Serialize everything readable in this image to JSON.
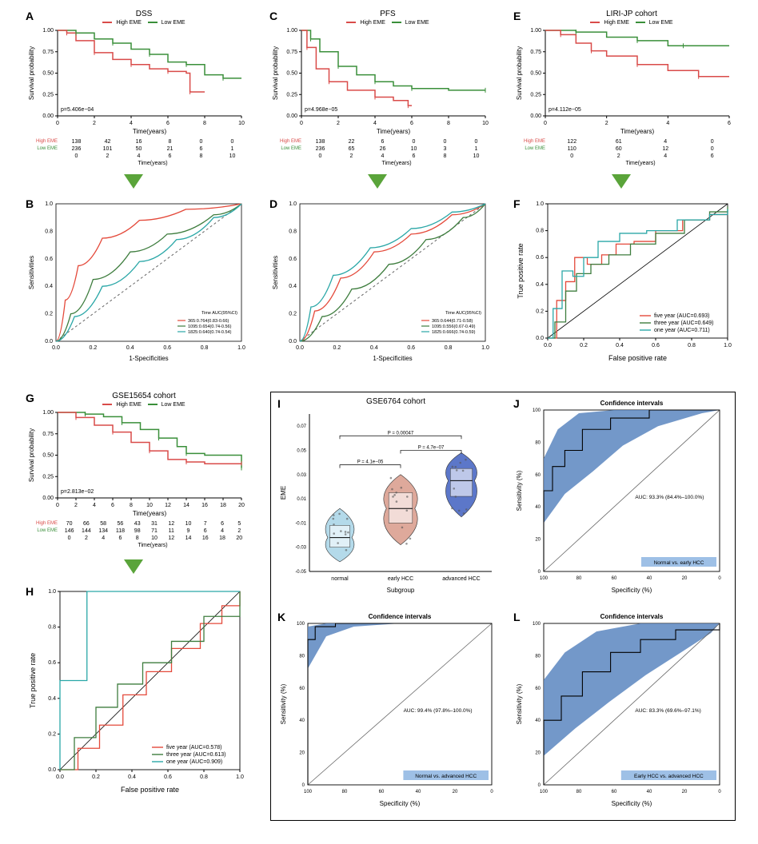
{
  "colors": {
    "high": "#d94b49",
    "low": "#3a8f3a",
    "roc_five": "#e4493a",
    "roc_three": "#3e7d3e",
    "roc_one": "#2aa7a7",
    "roc_diag": "#666666",
    "ci_fill": "#5b86bf",
    "violin_normal_fill": "#a7d3e6",
    "violin_early_fill": "#d89a89",
    "violin_adv_fill": "#3f5fbf",
    "grid": "#e0e0e0",
    "text": "#000000",
    "bg": "#ffffff"
  },
  "panelA": {
    "label": "A",
    "title": "DSS",
    "legend_high": "High EME",
    "legend_low": "Low EME",
    "xlabel": "Time(years)",
    "ylabel": "Survival probability",
    "xlim": [
      0,
      10
    ],
    "xtick_step": 2,
    "ylim": [
      0,
      1
    ],
    "ytick_step": 0.25,
    "pvalue_text": "p=5.406e−04",
    "high_curve": [
      [
        0,
        1.0
      ],
      [
        0.5,
        0.97
      ],
      [
        1,
        0.88
      ],
      [
        2,
        0.74
      ],
      [
        3,
        0.66
      ],
      [
        4,
        0.6
      ],
      [
        5,
        0.55
      ],
      [
        6,
        0.52
      ],
      [
        7,
        0.5
      ],
      [
        7.2,
        0.28
      ],
      [
        8,
        0.28
      ]
    ],
    "low_curve": [
      [
        0,
        1.0
      ],
      [
        1,
        0.97
      ],
      [
        2,
        0.9
      ],
      [
        3,
        0.85
      ],
      [
        4,
        0.78
      ],
      [
        5,
        0.72
      ],
      [
        6,
        0.63
      ],
      [
        7,
        0.6
      ],
      [
        8,
        0.48
      ],
      [
        9,
        0.44
      ],
      [
        10,
        0.44
      ]
    ],
    "risk_table": {
      "xlabel": "Time(years)",
      "rows": [
        {
          "label": "High EME",
          "color": "#d94b49",
          "values": [
            138,
            42,
            16,
            8,
            0,
            0
          ]
        },
        {
          "label": "Low EME",
          "color": "#3a8f3a",
          "values": [
            236,
            101,
            50,
            21,
            6,
            1
          ]
        }
      ],
      "ticks": [
        0,
        2,
        4,
        6,
        8,
        10
      ]
    }
  },
  "panelB": {
    "label": "B",
    "xlabel": "1-Specificities",
    "ylabel": "Sensitivities",
    "legend_title": "Time   AUC(95%CI)",
    "legend_rows": [
      {
        "color": "#e4493a",
        "text": "365:0.764(0.83-0.66)"
      },
      {
        "color": "#3e7d3e",
        "text": "1095:0.654(0.74-0.56)"
      },
      {
        "color": "#2aa7a7",
        "text": "1825:0.640(0.74-0.54)"
      }
    ],
    "curve1": [
      [
        0,
        0
      ],
      [
        0.05,
        0.3
      ],
      [
        0.12,
        0.55
      ],
      [
        0.25,
        0.75
      ],
      [
        0.45,
        0.88
      ],
      [
        0.7,
        0.96
      ],
      [
        1,
        1
      ]
    ],
    "curve2": [
      [
        0,
        0
      ],
      [
        0.08,
        0.2
      ],
      [
        0.2,
        0.45
      ],
      [
        0.4,
        0.65
      ],
      [
        0.6,
        0.78
      ],
      [
        0.85,
        0.92
      ],
      [
        1,
        1
      ]
    ],
    "curve3": [
      [
        0,
        0
      ],
      [
        0.1,
        0.18
      ],
      [
        0.25,
        0.4
      ],
      [
        0.45,
        0.58
      ],
      [
        0.65,
        0.74
      ],
      [
        0.85,
        0.9
      ],
      [
        1,
        1
      ]
    ]
  },
  "panelC": {
    "label": "C",
    "title": "PFS",
    "legend_high": "High EME",
    "legend_low": "Low EME",
    "xlabel": "Time(years)",
    "ylabel": "Survival probability",
    "xlim": [
      0,
      10
    ],
    "xtick_step": 2,
    "ylim": [
      0,
      1
    ],
    "ytick_step": 0.25,
    "pvalue_text": "p=4.968e−05",
    "high_curve": [
      [
        0,
        1.0
      ],
      [
        0.3,
        0.8
      ],
      [
        0.8,
        0.55
      ],
      [
        1.5,
        0.4
      ],
      [
        2.5,
        0.3
      ],
      [
        4,
        0.22
      ],
      [
        5,
        0.18
      ],
      [
        5.8,
        0.12
      ],
      [
        6,
        0.12
      ]
    ],
    "low_curve": [
      [
        0,
        1.0
      ],
      [
        0.5,
        0.9
      ],
      [
        1,
        0.75
      ],
      [
        2,
        0.58
      ],
      [
        3,
        0.48
      ],
      [
        4,
        0.4
      ],
      [
        5,
        0.35
      ],
      [
        6,
        0.32
      ],
      [
        8,
        0.3
      ],
      [
        10,
        0.3
      ]
    ],
    "risk_table": {
      "xlabel": "Time(years)",
      "rows": [
        {
          "label": "High EME",
          "color": "#d94b49",
          "values": [
            138,
            22,
            6,
            0,
            0,
            0
          ]
        },
        {
          "label": "Low EME",
          "color": "#3a8f3a",
          "values": [
            236,
            65,
            26,
            10,
            3,
            1
          ]
        }
      ],
      "ticks": [
        0,
        2,
        4,
        6,
        8,
        10
      ]
    }
  },
  "panelD": {
    "label": "D",
    "xlabel": "1-Specificities",
    "ylabel": "Sensitivities",
    "legend_title": "Time   AUC(95%CI)",
    "legend_rows": [
      {
        "color": "#e4493a",
        "text": "365:0.644(0.71-0.58)"
      },
      {
        "color": "#3e7d3e",
        "text": "1095:0.556(0.67-0.49)"
      },
      {
        "color": "#2aa7a7",
        "text": "1825:0.666(0.74-0.59)"
      }
    ],
    "curve1": [
      [
        0,
        0
      ],
      [
        0.08,
        0.22
      ],
      [
        0.22,
        0.46
      ],
      [
        0.4,
        0.65
      ],
      [
        0.6,
        0.78
      ],
      [
        0.82,
        0.92
      ],
      [
        1,
        1
      ]
    ],
    "curve2": [
      [
        0,
        0
      ],
      [
        0.12,
        0.18
      ],
      [
        0.28,
        0.38
      ],
      [
        0.48,
        0.56
      ],
      [
        0.68,
        0.74
      ],
      [
        0.88,
        0.9
      ],
      [
        1,
        1
      ]
    ],
    "curve3": [
      [
        0,
        0
      ],
      [
        0.06,
        0.25
      ],
      [
        0.18,
        0.48
      ],
      [
        0.38,
        0.68
      ],
      [
        0.6,
        0.82
      ],
      [
        0.82,
        0.94
      ],
      [
        1,
        1
      ]
    ]
  },
  "panelE": {
    "label": "E",
    "title": "LIRI-JP cohort",
    "legend_high": "High EME",
    "legend_low": "Low EME",
    "xlabel": "Time(years)",
    "ylabel": "Survival probability",
    "xlim": [
      0,
      6
    ],
    "xtick_step": 2,
    "ylim": [
      0,
      1
    ],
    "ytick_step": 0.25,
    "pvalue_text": "p=4.112e−05",
    "high_curve": [
      [
        0,
        1.0
      ],
      [
        0.5,
        0.95
      ],
      [
        1,
        0.85
      ],
      [
        1.5,
        0.76
      ],
      [
        2,
        0.7
      ],
      [
        3,
        0.6
      ],
      [
        4,
        0.53
      ],
      [
        5,
        0.46
      ],
      [
        6,
        0.46
      ]
    ],
    "low_curve": [
      [
        0,
        1.0
      ],
      [
        1,
        0.98
      ],
      [
        2,
        0.92
      ],
      [
        3,
        0.88
      ],
      [
        4,
        0.82
      ],
      [
        4.5,
        0.82
      ],
      [
        6,
        0.82
      ]
    ],
    "risk_table": {
      "xlabel": "Time(years)",
      "rows": [
        {
          "label": "High EME",
          "color": "#d94b49",
          "values": [
            122,
            61,
            4,
            0
          ]
        },
        {
          "label": "Low EME",
          "color": "#3a8f3a",
          "values": [
            110,
            60,
            12,
            0
          ]
        }
      ],
      "ticks": [
        0,
        2,
        4,
        6
      ]
    }
  },
  "panelF": {
    "label": "F",
    "xlabel": "False positive rate",
    "ylabel": "True positive rate",
    "xlim": [
      0,
      1
    ],
    "xtick_step": 0.2,
    "ylim": [
      0,
      1
    ],
    "ytick_step": 0.2,
    "legend_rows": [
      {
        "color": "#e4493a",
        "text": "five year (AUC=0.693)"
      },
      {
        "color": "#3e7d3e",
        "text": "three year (AUC=0.649)"
      },
      {
        "color": "#2aa7a7",
        "text": "one year (AUC=0.711)"
      }
    ],
    "curve_five": [
      [
        0,
        0
      ],
      [
        0.05,
        0.28
      ],
      [
        0.1,
        0.42
      ],
      [
        0.15,
        0.6
      ],
      [
        0.22,
        0.55
      ],
      [
        0.3,
        0.62
      ],
      [
        0.38,
        0.7
      ],
      [
        0.48,
        0.72
      ],
      [
        0.6,
        0.8
      ],
      [
        0.75,
        0.88
      ],
      [
        0.9,
        0.92
      ],
      [
        1,
        0.95
      ]
    ],
    "curve_three": [
      [
        0,
        0
      ],
      [
        0.04,
        0.12
      ],
      [
        0.1,
        0.35
      ],
      [
        0.16,
        0.48
      ],
      [
        0.24,
        0.55
      ],
      [
        0.34,
        0.62
      ],
      [
        0.46,
        0.7
      ],
      [
        0.6,
        0.78
      ],
      [
        0.76,
        0.88
      ],
      [
        0.9,
        0.94
      ],
      [
        1,
        0.98
      ]
    ],
    "curve_one": [
      [
        0,
        0
      ],
      [
        0.03,
        0.22
      ],
      [
        0.08,
        0.5
      ],
      [
        0.14,
        0.46
      ],
      [
        0.2,
        0.6
      ],
      [
        0.28,
        0.72
      ],
      [
        0.4,
        0.78
      ],
      [
        0.55,
        0.8
      ],
      [
        0.72,
        0.88
      ],
      [
        0.9,
        0.92
      ],
      [
        1,
        0.96
      ]
    ]
  },
  "panelG": {
    "label": "G",
    "title": "GSE15654 cohort",
    "legend_high": "High EME",
    "legend_low": "Low EME",
    "xlabel": "Time(years)",
    "ylabel": "Survival probability",
    "xlim": [
      0,
      20
    ],
    "xtick_step": 2,
    "ylim": [
      0,
      1
    ],
    "ytick_step": 0.25,
    "pvalue_text": "p=2.813e−02",
    "high_curve": [
      [
        0,
        1.0
      ],
      [
        2,
        0.94
      ],
      [
        4,
        0.85
      ],
      [
        6,
        0.77
      ],
      [
        8,
        0.65
      ],
      [
        10,
        0.55
      ],
      [
        12,
        0.45
      ],
      [
        14,
        0.42
      ],
      [
        16,
        0.4
      ],
      [
        20,
        0.4
      ]
    ],
    "low_curve": [
      [
        0,
        1.0
      ],
      [
        3,
        0.98
      ],
      [
        5,
        0.95
      ],
      [
        7,
        0.88
      ],
      [
        9,
        0.8
      ],
      [
        11,
        0.7
      ],
      [
        13,
        0.6
      ],
      [
        14,
        0.52
      ],
      [
        16,
        0.5
      ],
      [
        20,
        0.35
      ]
    ],
    "risk_table": {
      "xlabel": "Time(years)",
      "rows": [
        {
          "label": "High EME",
          "color": "#d94b49",
          "values": [
            70,
            66,
            58,
            56,
            43,
            31,
            12,
            10,
            7,
            6,
            5
          ]
        },
        {
          "label": "Low EME",
          "color": "#3a8f3a",
          "values": [
            146,
            144,
            134,
            118,
            98,
            71,
            11,
            9,
            6,
            4,
            2
          ]
        }
      ],
      "ticks": [
        0,
        2,
        4,
        6,
        8,
        10,
        12,
        14,
        16,
        18,
        20
      ]
    }
  },
  "panelH": {
    "label": "H",
    "xlabel": "False positive rate",
    "ylabel": "True positive rate",
    "xlim": [
      0,
      1
    ],
    "xtick_step": 0.2,
    "ylim": [
      0,
      1
    ],
    "ytick_step": 0.2,
    "legend_rows": [
      {
        "color": "#e4493a",
        "text": "five year (AUC=0.578)"
      },
      {
        "color": "#3e7d3e",
        "text": "three year (AUC=0.613)"
      },
      {
        "color": "#2aa7a7",
        "text": "one year (AUC=0.909)"
      }
    ],
    "curve_five": [
      [
        0,
        0
      ],
      [
        0.1,
        0.12
      ],
      [
        0.22,
        0.25
      ],
      [
        0.35,
        0.42
      ],
      [
        0.48,
        0.55
      ],
      [
        0.62,
        0.68
      ],
      [
        0.78,
        0.82
      ],
      [
        0.9,
        0.92
      ],
      [
        1,
        1
      ]
    ],
    "curve_three": [
      [
        0,
        0
      ],
      [
        0.08,
        0.18
      ],
      [
        0.2,
        0.35
      ],
      [
        0.32,
        0.48
      ],
      [
        0.46,
        0.6
      ],
      [
        0.62,
        0.72
      ],
      [
        0.8,
        0.86
      ],
      [
        1,
        1
      ]
    ],
    "curve_one": [
      [
        0,
        0
      ],
      [
        0.0,
        0.5
      ],
      [
        0.15,
        0.5
      ],
      [
        0.15,
        1.0
      ],
      [
        1,
        1
      ]
    ]
  },
  "panelI": {
    "label": "I",
    "title": "GSE6764 cohort",
    "ylabel": "EME",
    "xlabel": "Subgroup",
    "groups": [
      "normal",
      "early HCC",
      "advanced HCC"
    ],
    "group_colors": [
      "#a7d3e6",
      "#d89a89",
      "#3f5fbf"
    ],
    "ylim": [
      -0.05,
      0.08
    ],
    "pvals": [
      {
        "g1": 0,
        "g2": 1,
        "y": 0.038,
        "text": "P = 4.1e−05"
      },
      {
        "g1": 1,
        "g2": 2,
        "y": 0.05,
        "text": "P = 4.7e−07"
      },
      {
        "g1": 0,
        "g2": 2,
        "y": 0.062,
        "text": "P = 0.00047"
      }
    ],
    "violin_data": {
      "normal": {
        "median": -0.022,
        "q1": -0.03,
        "q3": -0.012,
        "min": -0.042,
        "max": 0.002,
        "width": 0.11
      },
      "early": {
        "median": 0.002,
        "q1": -0.01,
        "q3": 0.015,
        "min": -0.028,
        "max": 0.03,
        "width": 0.13
      },
      "advanced": {
        "median": 0.025,
        "q1": 0.012,
        "q3": 0.035,
        "min": -0.005,
        "max": 0.048,
        "width": 0.12
      }
    }
  },
  "panelJ": {
    "label": "J",
    "title": "Confidence intervals",
    "xlabel": "Specificity (%)",
    "ylabel": "Sensitivity (%)",
    "auc_text": "AUC: 93.3% (84.4%–100.0%)",
    "comparison": "Normal vs. early HCC",
    "ci_fill": "#5b86bf",
    "roc_points": [
      [
        100,
        0
      ],
      [
        100,
        50
      ],
      [
        95,
        65
      ],
      [
        88,
        75
      ],
      [
        78,
        88
      ],
      [
        62,
        95
      ],
      [
        40,
        100
      ],
      [
        0,
        100
      ]
    ],
    "ci_upper": [
      [
        100,
        0
      ],
      [
        100,
        70
      ],
      [
        92,
        88
      ],
      [
        80,
        98
      ],
      [
        60,
        100
      ],
      [
        0,
        100
      ]
    ],
    "ci_lower": [
      [
        100,
        0
      ],
      [
        100,
        30
      ],
      [
        88,
        48
      ],
      [
        72,
        62
      ],
      [
        55,
        78
      ],
      [
        35,
        90
      ],
      [
        10,
        98
      ],
      [
        0,
        100
      ]
    ]
  },
  "panelK": {
    "label": "K",
    "title": "Confidence intervals",
    "xlabel": "Specificity (%)",
    "ylabel": "Sensitivity (%)",
    "auc_text": "AUC: 99.4% (97.8%–100.0%)",
    "comparison": "Normal vs. advanced HCC",
    "ci_fill": "#5b86bf",
    "roc_points": [
      [
        100,
        0
      ],
      [
        100,
        90
      ],
      [
        96,
        98
      ],
      [
        85,
        100
      ],
      [
        0,
        100
      ]
    ],
    "ci_upper": [
      [
        100,
        0
      ],
      [
        100,
        98
      ],
      [
        90,
        100
      ],
      [
        0,
        100
      ]
    ],
    "ci_lower": [
      [
        100,
        0
      ],
      [
        100,
        72
      ],
      [
        90,
        92
      ],
      [
        75,
        98
      ],
      [
        50,
        100
      ],
      [
        0,
        100
      ]
    ]
  },
  "panelL": {
    "label": "L",
    "title": "Confidence intervals",
    "xlabel": "Specificity (%)",
    "ylabel": "Sensitivity (%)",
    "auc_text": "AUC: 83.3% (69.6%–97.1%)",
    "comparison": "Early HCC vs. advanced HCC",
    "ci_fill": "#5b86bf",
    "roc_points": [
      [
        100,
        0
      ],
      [
        100,
        40
      ],
      [
        90,
        55
      ],
      [
        78,
        70
      ],
      [
        62,
        82
      ],
      [
        45,
        90
      ],
      [
        25,
        96
      ],
      [
        0,
        100
      ]
    ],
    "ci_upper": [
      [
        100,
        0
      ],
      [
        100,
        65
      ],
      [
        88,
        82
      ],
      [
        70,
        95
      ],
      [
        45,
        100
      ],
      [
        0,
        100
      ]
    ],
    "ci_lower": [
      [
        100,
        0
      ],
      [
        100,
        18
      ],
      [
        82,
        35
      ],
      [
        62,
        52
      ],
      [
        42,
        68
      ],
      [
        22,
        82
      ],
      [
        5,
        94
      ],
      [
        0,
        100
      ]
    ]
  }
}
